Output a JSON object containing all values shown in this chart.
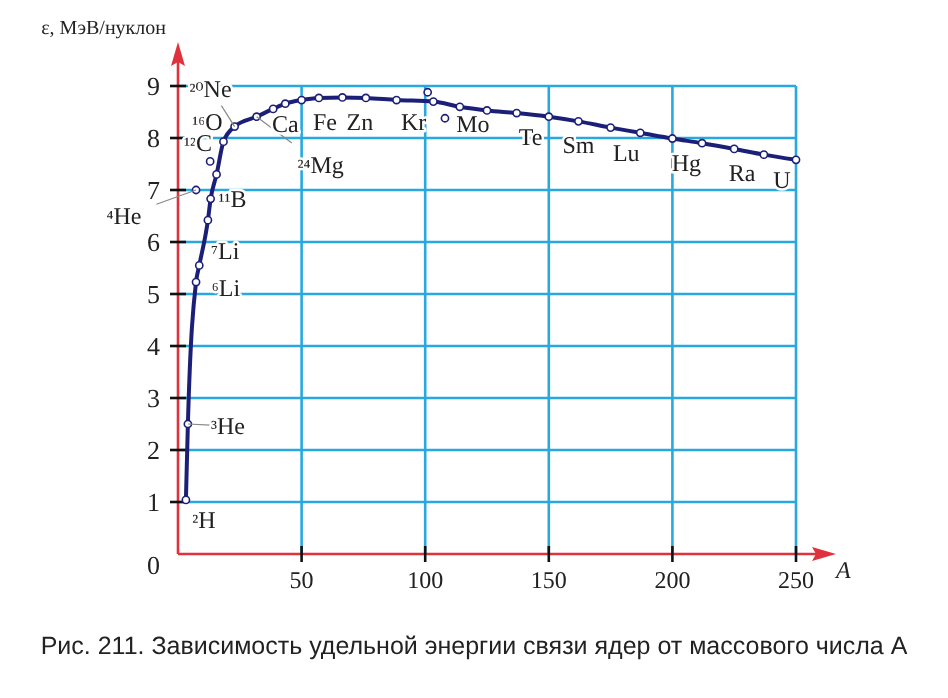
{
  "chart_data": {
    "type": "line",
    "ylabel": "ε, МэВ/нуклон",
    "xlabel": "A",
    "xlim": [
      0,
      250
    ],
    "ylim": [
      0,
      9
    ],
    "xticks": [
      50,
      100,
      150,
      200,
      250
    ],
    "yticks": [
      0,
      1,
      2,
      3,
      4,
      5,
      6,
      7,
      8,
      9
    ],
    "grid": true,
    "marker": "circle",
    "line_style": "solid",
    "series": [
      {
        "color": "#1c1f78",
        "x": [
          3.2,
          4,
          7.3,
          8.6,
          12.1,
          13.2,
          15.6,
          18.4,
          22.9,
          31.8,
          38.5,
          43.4,
          50,
          57,
          66.5,
          76,
          88.4,
          103.3,
          114,
          125,
          137,
          150,
          162,
          175,
          187,
          200,
          212,
          225,
          237,
          250
        ],
        "values": [
          1.04,
          2.5,
          5.23,
          5.55,
          6.42,
          6.83,
          7.3,
          7.93,
          8.22,
          8.41,
          8.56,
          8.66,
          8.73,
          8.77,
          8.78,
          8.77,
          8.73,
          8.7,
          8.6,
          8.53,
          8.48,
          8.41,
          8.32,
          8.2,
          8.1,
          7.99,
          7.9,
          7.79,
          7.68,
          7.58
        ]
      },
      {
        "type": "scatter",
        "color": "#1c1f78",
        "x": [
          7.3,
          13,
          101,
          108
        ],
        "values": [
          7.0,
          7.55,
          8.88,
          8.38
        ]
      }
    ],
    "annotations": [
      {
        "text": "²⁰Ne",
        "x": 22.9,
        "y": 8.22
      },
      {
        "text": "¹⁶O",
        "x": 18.4,
        "y": 7.93
      },
      {
        "text": "¹²C",
        "x": 13,
        "y": 7.55
      },
      {
        "text": "²⁴Mg",
        "x": 31.8,
        "y": 8.41
      },
      {
        "text": "⁴He",
        "x": 7.3,
        "y": 7.0
      },
      {
        "text": "¹¹B",
        "x": 13.2,
        "y": 6.83
      },
      {
        "text": "⁷Li",
        "x": 8.6,
        "y": 5.55
      },
      {
        "text": "⁶Li",
        "x": 7.3,
        "y": 5.23
      },
      {
        "text": "³He",
        "x": 4,
        "y": 2.5
      },
      {
        "text": "²H",
        "x": 3.2,
        "y": 1.04
      },
      {
        "text": "Ca",
        "x": 43.4,
        "y": 8.66
      },
      {
        "text": "Fe",
        "x": 57,
        "y": 8.77
      },
      {
        "text": "Zn",
        "x": 76,
        "y": 8.77
      },
      {
        "text": "Kr",
        "x": 101,
        "y": 8.88
      },
      {
        "text": "Mo",
        "x": 108,
        "y": 8.38
      },
      {
        "text": "Te",
        "x": 137,
        "y": 8.48
      },
      {
        "text": "Sm",
        "x": 162,
        "y": 8.32
      },
      {
        "text": "Lu",
        "x": 187,
        "y": 8.1
      },
      {
        "text": "Hg",
        "x": 200,
        "y": 7.99
      },
      {
        "text": "Ra",
        "x": 225,
        "y": 7.79
      },
      {
        "text": "U",
        "x": 250,
        "y": 7.58
      },
      "Рис. 211. Зависимость удельной энергии связи ядер от массового числа А"
    ]
  }
}
